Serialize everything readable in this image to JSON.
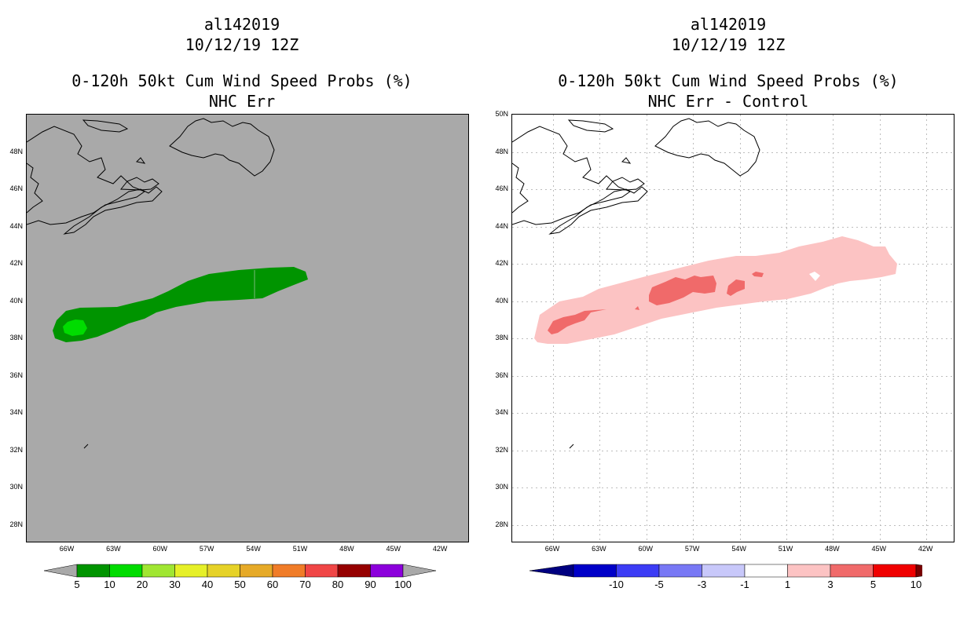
{
  "left": {
    "storm_id": "al142019",
    "datetime": "10/12/19 12Z",
    "product": "0-120h 50kt Cum Wind Speed Probs (%)",
    "subtitle": "NHC Err",
    "bg": "#a9a9a9",
    "fills": {
      "p5": "#009400",
      "p10": "#00dc00"
    },
    "cbar_colors": [
      "#009400",
      "#00dc00",
      "#a0e632",
      "#e6f028",
      "#e6d228",
      "#e6aa28",
      "#f07c28",
      "#f04646",
      "#960000",
      "#8c00dc"
    ],
    "cbar_labels": [
      "5",
      "10",
      "20",
      "30",
      "40",
      "50",
      "60",
      "70",
      "80",
      "90",
      "100"
    ],
    "cbar_ends": "#a9a9a9"
  },
  "right": {
    "storm_id": "al142019",
    "datetime": "10/12/19 12Z",
    "product": "0-120h 50kt Cum Wind Speed Probs (%)",
    "subtitle": "NHC Err - Control",
    "bg": "#ffffff",
    "fills": {
      "d1": "#fcc3c3",
      "d3": "#f06a6a"
    },
    "cbar_colors": [
      "#0000c8",
      "#3c3cf5",
      "#7878f5",
      "#c8c8fa",
      "#ffffff",
      "#fcc3c3",
      "#f06a6a",
      "#f00000"
    ],
    "cbar_left_end": "#000080",
    "cbar_right_end": "#780000",
    "cbar_labels": [
      "-10",
      "-5",
      "-3",
      "-1",
      "1",
      "3",
      "5",
      "10"
    ]
  },
  "axes": {
    "lat_labels": [
      "50N",
      "48N",
      "46N",
      "44N",
      "42N",
      "40N",
      "38N",
      "36N",
      "34N",
      "32N",
      "30N",
      "28N"
    ],
    "lon_labels": [
      "66W",
      "63W",
      "60W",
      "57W",
      "54W",
      "51W",
      "48W",
      "45W",
      "42W"
    ]
  }
}
